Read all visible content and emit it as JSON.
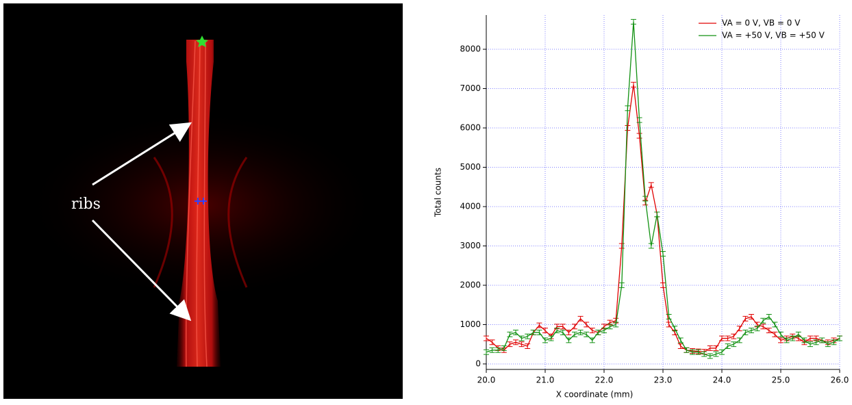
{
  "image": {
    "annotation": "ribs"
  },
  "chart_data": {
    "type": "line",
    "x_label": "X coordinate (mm)",
    "y_label": "Total counts",
    "x": [
      20.0,
      20.1,
      20.2,
      20.3,
      20.4,
      20.5,
      20.6,
      20.7,
      20.8,
      20.9,
      21.0,
      21.1,
      21.2,
      21.3,
      21.4,
      21.5,
      21.6,
      21.7,
      21.8,
      21.9,
      22.0,
      22.1,
      22.2,
      22.3,
      22.4,
      22.5,
      22.6,
      22.7,
      22.8,
      22.9,
      23.0,
      23.1,
      23.2,
      23.3,
      23.4,
      23.5,
      23.6,
      23.7,
      23.8,
      23.9,
      24.0,
      24.1,
      24.2,
      24.3,
      24.4,
      24.5,
      24.6,
      24.7,
      24.8,
      24.9,
      25.0,
      25.1,
      25.2,
      25.3,
      25.4,
      25.5,
      25.6,
      25.7,
      25.8,
      25.9,
      26.0
    ],
    "series": [
      {
        "name": "VA = 0 V, VB = 0 V",
        "color": "#e00000",
        "error": 60,
        "values": [
          650,
          550,
          400,
          350,
          500,
          550,
          500,
          450,
          800,
          980,
          850,
          700,
          950,
          950,
          800,
          950,
          1150,
          1000,
          850,
          800,
          950,
          1050,
          1100,
          3000,
          6000,
          7100,
          5800,
          4100,
          4550,
          3800,
          2000,
          1000,
          800,
          450,
          350,
          330,
          320,
          310,
          400,
          400,
          650,
          650,
          700,
          900,
          1150,
          1200,
          1000,
          950,
          850,
          750,
          600,
          650,
          700,
          650,
          550,
          650,
          650,
          600,
          550,
          600,
          650
        ]
      },
      {
        "name": "VA = +50 V, VB = +50 V",
        "color": "#109010",
        "error": 60,
        "values": [
          300,
          350,
          350,
          400,
          750,
          800,
          650,
          700,
          800,
          800,
          600,
          650,
          850,
          800,
          600,
          750,
          800,
          750,
          600,
          800,
          850,
          950,
          1000,
          2000,
          6500,
          8700,
          6200,
          4200,
          3000,
          3800,
          2800,
          1200,
          900,
          600,
          350,
          300,
          300,
          250,
          200,
          250,
          300,
          450,
          500,
          600,
          800,
          850,
          900,
          1100,
          1200,
          1000,
          750,
          600,
          650,
          750,
          600,
          500,
          550,
          600,
          500,
          550,
          650
        ]
      }
    ],
    "xlim": [
      20,
      26
    ],
    "xticks": [
      {
        "value": 20,
        "label": "20.0"
      },
      {
        "value": 21,
        "label": "21.0"
      },
      {
        "value": 22,
        "label": "22.0"
      },
      {
        "value": 23,
        "label": "23.0"
      },
      {
        "value": 24,
        "label": "24.0"
      },
      {
        "value": 25,
        "label": "25.0"
      },
      {
        "value": 26,
        "label": "26.0"
      }
    ],
    "ylim": [
      -140,
      8870
    ],
    "yticks": [
      0,
      1000,
      2000,
      3000,
      4000,
      5000,
      6000,
      7000,
      8000
    ],
    "grid": true,
    "legend": "upper right"
  }
}
